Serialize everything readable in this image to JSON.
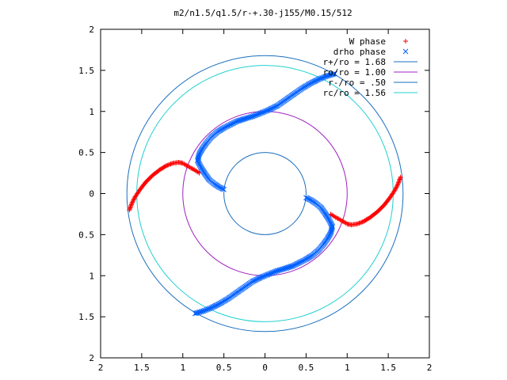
{
  "chart_data": {
    "type": "scatter",
    "title": "m2/n1.5/q1.5/r-+.30-j155/M0.15/512",
    "xlim": [
      -2,
      2
    ],
    "ylim": [
      -2,
      2
    ],
    "xticks": [
      "2",
      "1.5",
      "1",
      "0.5",
      "0",
      "0.5",
      "1",
      "1.5",
      "2"
    ],
    "yticks": [
      "2",
      "1.5",
      "1",
      "0.5",
      "0",
      "0.5",
      "1",
      "1.5",
      "2"
    ],
    "grid": false,
    "legend_position": "top-right",
    "series": [
      {
        "name": "W phase",
        "kind": "points",
        "marker": "plus",
        "color": "#ff0000",
        "segments": [
          {
            "x": [
              1.65,
              1.62,
              1.58,
              1.52,
              1.45,
              1.37,
              1.28,
              1.2,
              1.12,
              1.05,
              1.0,
              0.97,
              0.93,
              0.9,
              0.86,
              0.83,
              0.8
            ],
            "y": [
              0.2,
              0.12,
              0.04,
              -0.05,
              -0.14,
              -0.22,
              -0.29,
              -0.34,
              -0.37,
              -0.38,
              -0.37,
              -0.35,
              -0.33,
              -0.31,
              -0.29,
              -0.27,
              -0.25
            ]
          },
          {
            "x": [
              -1.65,
              -1.62,
              -1.58,
              -1.52,
              -1.45,
              -1.37,
              -1.28,
              -1.2,
              -1.12,
              -1.05,
              -1.0,
              -0.97,
              -0.93,
              -0.9,
              -0.86,
              -0.83,
              -0.8
            ],
            "y": [
              -0.2,
              -0.12,
              -0.04,
              0.05,
              0.14,
              0.22,
              0.29,
              0.34,
              0.37,
              0.38,
              0.37,
              0.35,
              0.33,
              0.31,
              0.29,
              0.27,
              0.25
            ]
          }
        ]
      },
      {
        "name": "drho phase",
        "kind": "points",
        "marker": "cross",
        "color": "#0060ff",
        "segments": [
          {
            "x": [
              0.5,
              0.56,
              0.62,
              0.68,
              0.73,
              0.78,
              0.82,
              0.8,
              0.76,
              0.71,
              0.65,
              0.58,
              0.5,
              0.42,
              0.34,
              0.25,
              0.15,
              0.05,
              -0.05,
              -0.15,
              -0.25,
              -0.35,
              -0.45,
              -0.55,
              -0.65,
              -0.75,
              -0.85
            ],
            "y": [
              -0.05,
              -0.08,
              -0.12,
              -0.17,
              -0.24,
              -0.32,
              -0.4,
              -0.48,
              -0.55,
              -0.62,
              -0.69,
              -0.75,
              -0.8,
              -0.84,
              -0.88,
              -0.91,
              -0.94,
              -0.98,
              -1.02,
              -1.07,
              -1.14,
              -1.21,
              -1.28,
              -1.34,
              -1.39,
              -1.43,
              -1.46
            ]
          },
          {
            "x": [
              -0.5,
              -0.56,
              -0.62,
              -0.68,
              -0.73,
              -0.78,
              -0.82,
              -0.8,
              -0.76,
              -0.71,
              -0.65,
              -0.58,
              -0.5,
              -0.42,
              -0.34,
              -0.25,
              -0.15,
              -0.05,
              0.05,
              0.15,
              0.25,
              0.35,
              0.45,
              0.55,
              0.65,
              0.75,
              0.85
            ],
            "y": [
              0.05,
              0.08,
              0.12,
              0.17,
              0.24,
              0.32,
              0.4,
              0.48,
              0.55,
              0.62,
              0.69,
              0.75,
              0.8,
              0.84,
              0.88,
              0.91,
              0.94,
              0.98,
              1.02,
              1.07,
              1.14,
              1.21,
              1.28,
              1.34,
              1.39,
              1.43,
              1.46
            ]
          }
        ]
      },
      {
        "name": "r+/ro = 1.68",
        "kind": "circle",
        "radius": 1.68,
        "color": "#1a6fbf"
      },
      {
        "name": "ro/ro = 1.00",
        "kind": "circle",
        "radius": 1.0,
        "color": "#a020c0"
      },
      {
        "name": "r-/ro = .50",
        "kind": "circle",
        "radius": 0.5,
        "color": "#1a6fbf"
      },
      {
        "name": "rc/ro = 1.56",
        "kind": "circle",
        "radius": 1.56,
        "color": "#20d0d0"
      }
    ]
  }
}
